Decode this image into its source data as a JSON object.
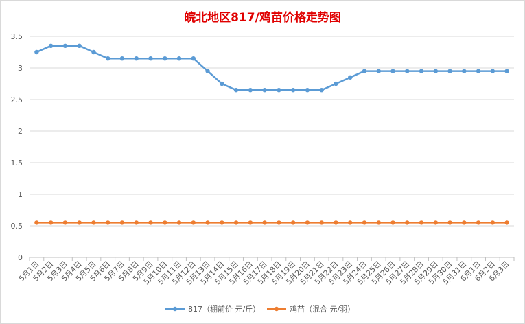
{
  "chart_data": {
    "type": "line",
    "title": "皖北地区817/鸡苗价格走势图",
    "categories": [
      "5月1日",
      "5月2日",
      "5月3日",
      "5月4日",
      "5月5日",
      "5月6日",
      "5月7日",
      "5月8日",
      "5月9日",
      "5月10日",
      "5月11日",
      "5月12日",
      "5月13日",
      "5月14日",
      "5月15日",
      "5月16日",
      "5月17日",
      "5月18日",
      "5月19日",
      "5月20日",
      "5月21日",
      "5月22日",
      "5月23日",
      "5月24日",
      "5月25日",
      "5月26日",
      "5月27日",
      "5月28日",
      "5月29日",
      "5月30日",
      "5月31日",
      "6月1日",
      "6月2日",
      "6月3日"
    ],
    "series": [
      {
        "name": "817（棚前价 元/斤）",
        "color": "#5b9bd5",
        "values": [
          3.25,
          3.35,
          3.35,
          3.35,
          3.25,
          3.15,
          3.15,
          3.15,
          3.15,
          3.15,
          3.15,
          3.15,
          2.95,
          2.75,
          2.65,
          2.65,
          2.65,
          2.65,
          2.65,
          2.65,
          2.65,
          2.75,
          2.85,
          2.95,
          2.95,
          2.95,
          2.95,
          2.95,
          2.95,
          2.95,
          2.95,
          2.95,
          2.95,
          2.95
        ]
      },
      {
        "name": "鸡苗（混合 元/羽）",
        "color": "#ed7d31",
        "values": [
          0.55,
          0.55,
          0.55,
          0.55,
          0.55,
          0.55,
          0.55,
          0.55,
          0.55,
          0.55,
          0.55,
          0.55,
          0.55,
          0.55,
          0.55,
          0.55,
          0.55,
          0.55,
          0.55,
          0.55,
          0.55,
          0.55,
          0.55,
          0.55,
          0.55,
          0.55,
          0.55,
          0.55,
          0.55,
          0.55,
          0.55,
          0.55,
          0.55,
          0.55
        ]
      }
    ],
    "y_ticks": [
      "0",
      "0.5",
      "1",
      "1.5",
      "2",
      "2.5",
      "3",
      "3.5"
    ],
    "ylim": [
      0,
      3.5
    ],
    "grid": true,
    "legend_position": "bottom"
  }
}
